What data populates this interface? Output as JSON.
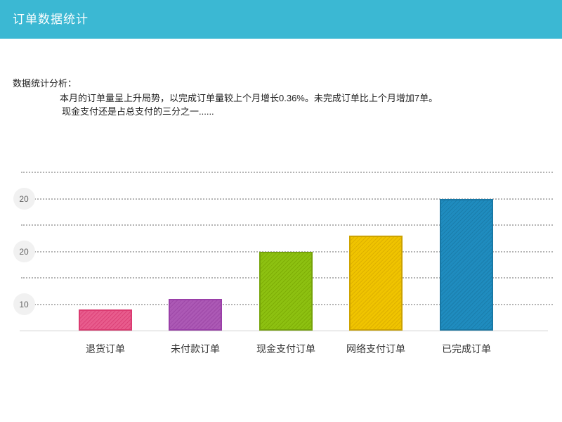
{
  "header": {
    "title": "订单数据统计",
    "background_color": "#3bb8d3"
  },
  "analysis": {
    "label": "数据统计分析：",
    "lines": [
      "本月的订单量呈上升局势，以完成订单量较上个月增长0.36%。未完成订单比上个月增加7单。",
      "现金支付还是占总支付的三分之一......"
    ]
  },
  "chart_data": {
    "type": "bar",
    "title": "",
    "xlabel": "",
    "ylabel": "",
    "categories": [
      "退货订单",
      "未付款订单",
      "现金支付订单",
      "网络支付订单",
      "已完成订单"
    ],
    "values": [
      9,
      11,
      20,
      23,
      30
    ],
    "ytick_labels_top_to_bottom": [
      "20",
      "20",
      "10"
    ],
    "grid": "horizontal dotted lines, circular tick badges on alternating lines",
    "legend": "none",
    "bar_colors": [
      {
        "name": "pink",
        "fill": "#e85c8d",
        "stripe": "#dc4278",
        "border": "#db3b71"
      },
      {
        "name": "purple",
        "fill": "#ac59b5",
        "stripe": "#9d48a7",
        "border": "#9a3fa8"
      },
      {
        "name": "green",
        "fill": "#8dc111",
        "stripe": "#7ead06",
        "border": "#76a30a"
      },
      {
        "name": "yellow",
        "fill": "#f0c400",
        "stripe": "#ddb000",
        "border": "#cda300"
      },
      {
        "name": "blue",
        "fill": "#1f8cbf",
        "stripe": "#1a7dab",
        "border": "#1878a5"
      }
    ]
  }
}
